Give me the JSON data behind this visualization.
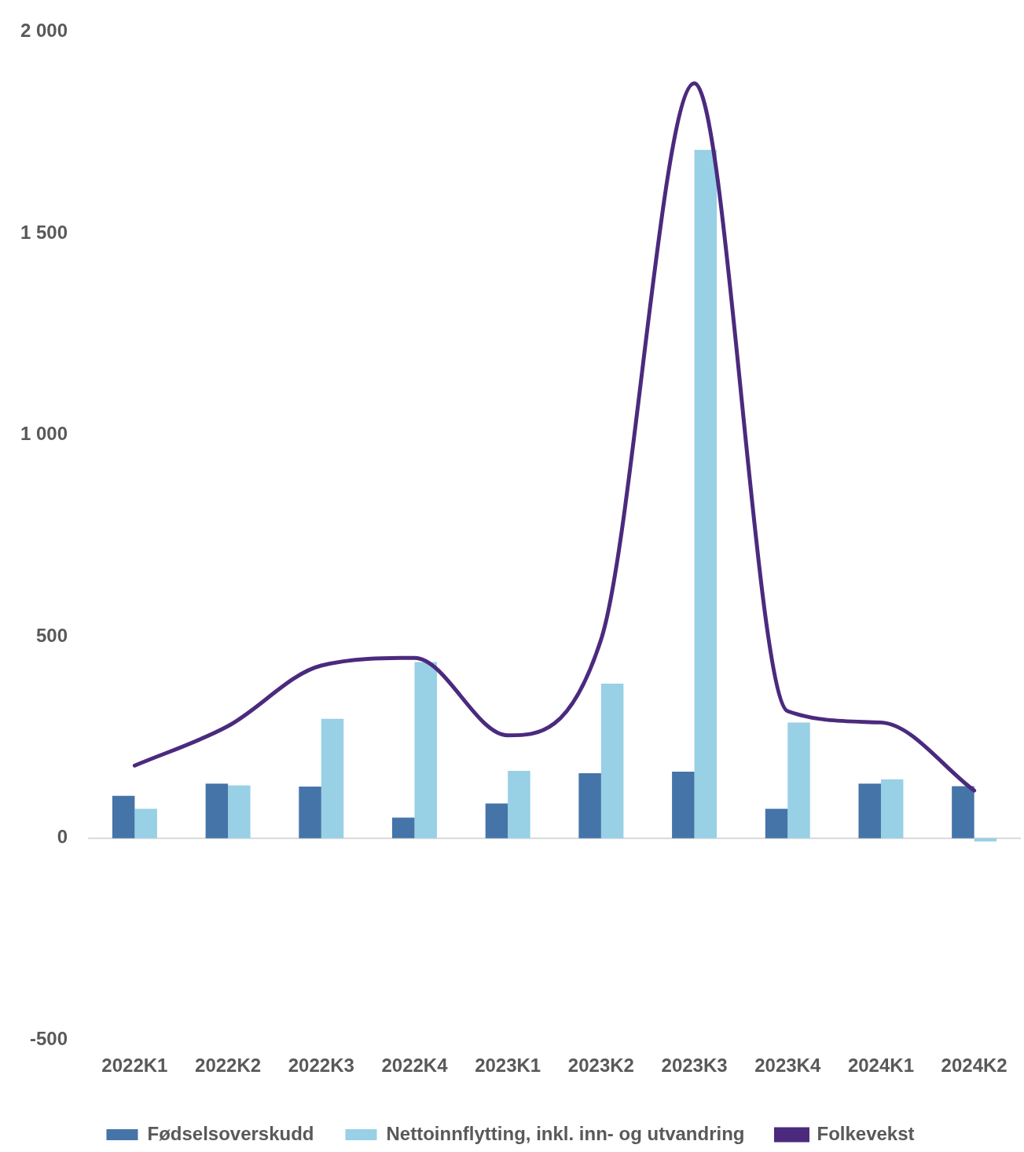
{
  "chart_data": {
    "type": "bar",
    "categories": [
      "2022K1",
      "2022K2",
      "2022K3",
      "2022K4",
      "2023K1",
      "2023K2",
      "2023K3",
      "2023K4",
      "2024K1",
      "2024K2"
    ],
    "series": [
      {
        "name": "Fødselsoverskudd",
        "color": "#4574a8",
        "values": [
          105,
          135,
          128,
          51,
          86,
          161,
          165,
          73,
          135,
          129
        ]
      },
      {
        "name": "Nettoinnflytting, inkl. inn- og utvandring",
        "color": "#98d0e6",
        "values": [
          73,
          131,
          296,
          437,
          167,
          383,
          1707,
          287,
          146,
          -8
        ]
      },
      {
        "name": "Folkevekst",
        "type": "line",
        "color": "#4b2a7e",
        "values": [
          180,
          278,
          428,
          447,
          255,
          493,
          1872,
          315,
          287,
          118
        ]
      }
    ],
    "ylim": [
      -500,
      2000
    ],
    "yticks": [
      {
        "value": -500,
        "label": "-500"
      },
      {
        "value": 0,
        "label": "0"
      },
      {
        "value": 500,
        "label": "500"
      },
      {
        "value": 1000,
        "label": "1 000"
      },
      {
        "value": 1500,
        "label": "1 500"
      },
      {
        "value": 2000,
        "label": "2 000"
      }
    ],
    "grid": false,
    "ref_lines": [
      {
        "axis": "y",
        "value": 0,
        "color": "#d9d9d9"
      }
    ],
    "legend": "bottom",
    "marker": "none"
  }
}
